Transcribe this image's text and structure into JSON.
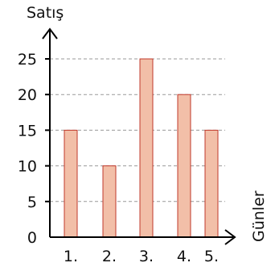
{
  "chart_data": {
    "type": "bar",
    "categories": [
      "1.",
      "2.",
      "3.",
      "4.",
      "5."
    ],
    "values": [
      15,
      10,
      25,
      20,
      15
    ],
    "title": "",
    "xlabel": "Günler",
    "ylabel": "Satış",
    "ylim": [
      0,
      25
    ],
    "yticks": [
      0,
      5,
      10,
      15,
      20,
      25
    ],
    "grid": true,
    "bar_color": "#f2bfa8",
    "bar_edge_color": "#c0392b",
    "grid_color": "#999999",
    "axis_color": "#000000"
  }
}
